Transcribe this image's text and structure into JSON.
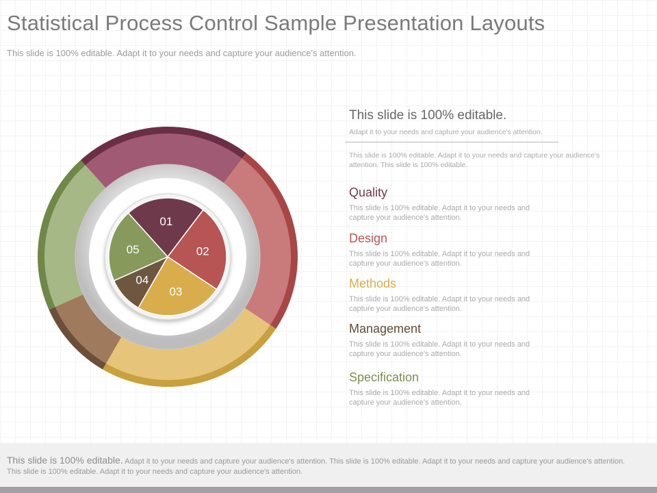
{
  "header": {
    "title": "Statistical Process Control Sample Presentation Layouts",
    "subtitle": "This slide is 100% editable.  Adapt it to your needs and capture your audience's attention."
  },
  "diagram": {
    "inner_segments": [
      {
        "label": "01",
        "value": 22,
        "color": "#6e3a4b"
      },
      {
        "label": "02",
        "value": 24,
        "color": "#b75454"
      },
      {
        "label": "03",
        "value": 24,
        "color": "#d9ad4b"
      },
      {
        "label": "04",
        "value": 10,
        "color": "#6e5740"
      },
      {
        "label": "05",
        "value": 20,
        "color": "#879a5c"
      }
    ],
    "outer_colors": [
      "#a15a74",
      "#c97b7b",
      "#e6c47a",
      "#a07a5c",
      "#a6b885"
    ],
    "outer_edge_colors": [
      "#6a2f45",
      "#a84646",
      "#c8a03d",
      "#6b4f3a",
      "#6f8848"
    ]
  },
  "panel": {
    "heading": "This slide is 100% editable.",
    "sub": "Adapt it to your needs and capture your audience's attention.",
    "desc": "This slide is 100% editable. Adapt it to your needs and capture your audience's attention. This slide is 100% editable."
  },
  "items": [
    {
      "title": "Quality",
      "desc": "This slide is 100% editable. Adapt it to your needs and capture your audience's attention.",
      "color": "#6e3a4b"
    },
    {
      "title": "Design",
      "desc": "This slide is 100% editable. Adapt it to your needs and capture your audience's attention.",
      "color": "#b75454"
    },
    {
      "title": "Methods",
      "desc": "This slide is 100% editable. Adapt it to your needs and capture your audience's attention.",
      "color": "#d9ad4b"
    },
    {
      "title": "Management",
      "desc": "This slide is 100% editable. Adapt it to your needs and capture your audience's attention.",
      "color": "#6e5740"
    },
    {
      "title": "Specification",
      "desc": "This slide is 100% editable. Adapt it to your needs and capture your audience's attention.",
      "color": "#879a5c"
    }
  ],
  "footer": {
    "lead": "This slide is 100% editable.",
    "text": " Adapt it to your needs and capture your audience's attention. This slide is 100% editable. Adapt it to your needs and capture your audience's attention. This slide is 100% editable. Adapt it to your needs and capture your audience's attention."
  }
}
